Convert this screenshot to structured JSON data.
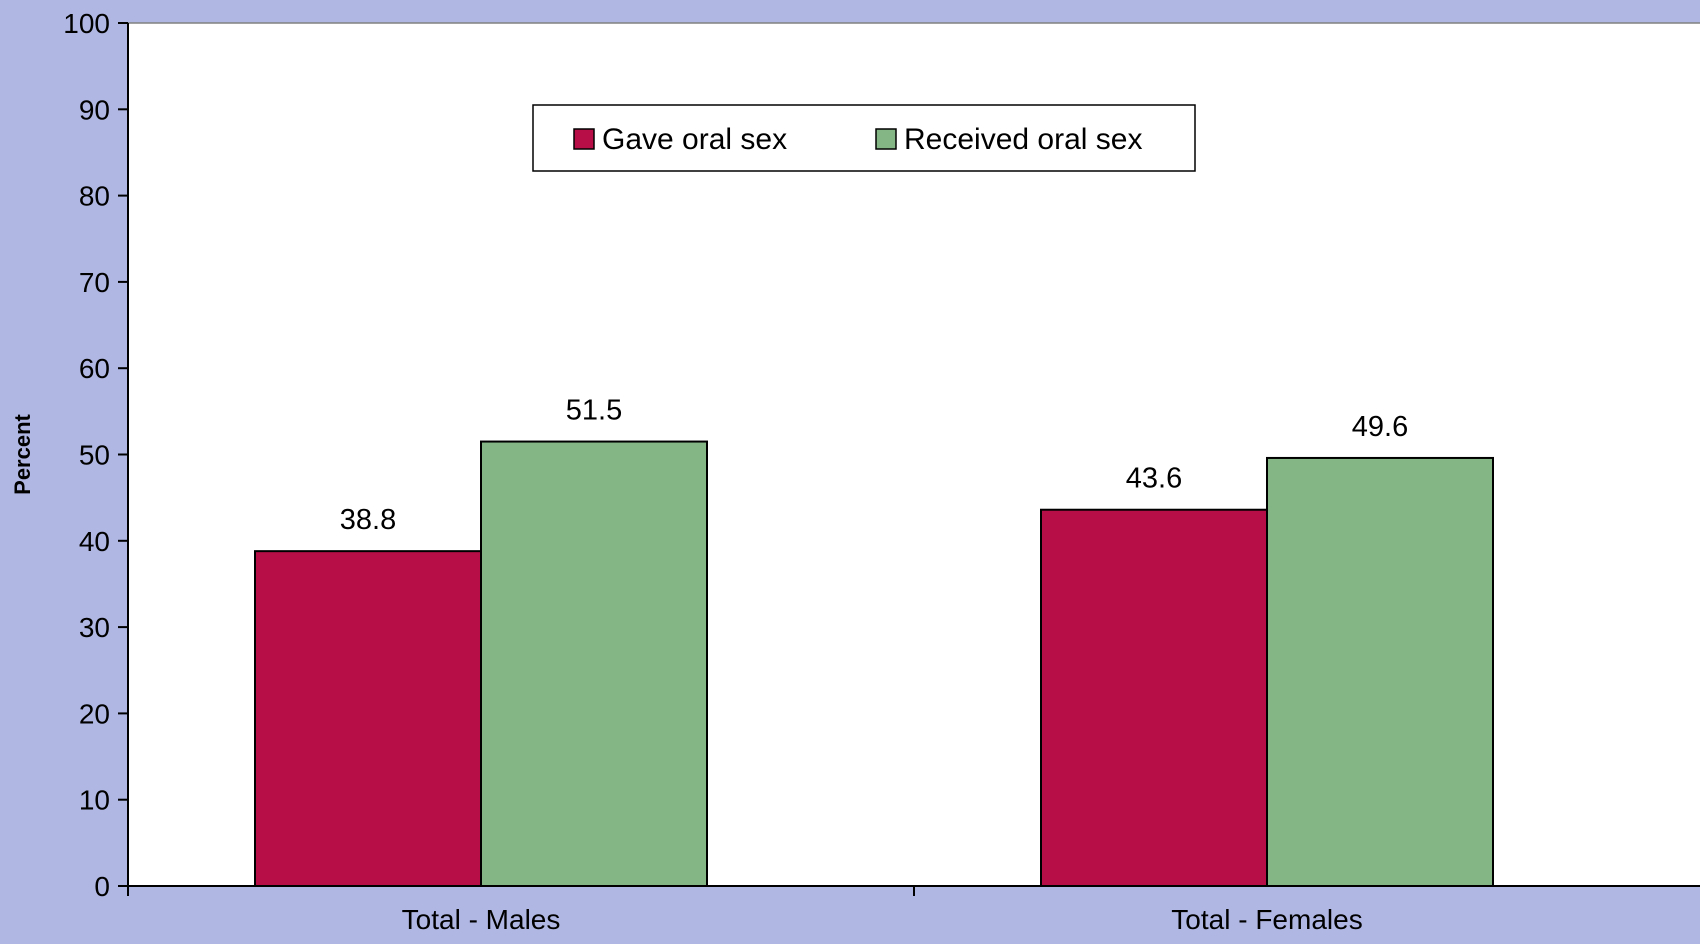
{
  "chart_data": {
    "type": "bar",
    "categories": [
      "Total - Males",
      "Total - Females"
    ],
    "series": [
      {
        "name": "Gave oral sex",
        "values": [
          38.8,
          43.6
        ],
        "color": "#b80e47"
      },
      {
        "name": "Received oral sex",
        "values": [
          51.5,
          49.6
        ],
        "color": "#84b584"
      }
    ],
    "ylabel": "Percent",
    "xlabel": "",
    "ylim": [
      0,
      100
    ],
    "yticks": [
      0,
      10,
      20,
      30,
      40,
      50,
      60,
      70,
      80,
      90,
      100
    ],
    "grid": false,
    "legend_position": "top-center",
    "data_labels": true
  },
  "colors": {
    "page_background": "#b0b7e3",
    "plot_background": "#ffffff"
  }
}
